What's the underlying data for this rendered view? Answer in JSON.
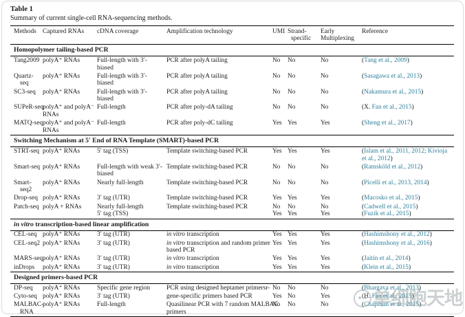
{
  "page": {
    "table_label": "Table 1",
    "caption": "Summary of current single-cell RNA-sequencing methods."
  },
  "colors": {
    "link": "#2a7f9c",
    "text": "#1c1c1c",
    "rule": "#000000",
    "frame": "#dadada",
    "background": "#ffffff"
  },
  "columns": [
    {
      "lines": [
        "Methods"
      ]
    },
    {
      "lines": [
        "Captured RNAs"
      ]
    },
    {
      "lines": [
        "cDNA coverage"
      ]
    },
    {
      "lines": [
        "Amplification technology"
      ]
    },
    {
      "lines": [
        "UMI"
      ]
    },
    {
      "lines": [
        "Strand-",
        "specific"
      ]
    },
    {
      "lines": [
        "Early",
        "Multiplexing"
      ]
    },
    {
      "lines": [
        "Reference"
      ]
    }
  ],
  "sections": [
    {
      "title": {
        "i": "",
        "t": "Homopolymer tailing-based PCR"
      },
      "rows": [
        {
          "method": [
            "Tang2009"
          ],
          "captured": [
            "polyA⁺ RNAs"
          ],
          "coverage": [
            "Full-length with 3′-",
            "biased"
          ],
          "amp": [
            {
              "i": "",
              "t": "PCR after polyA tailing"
            }
          ],
          "umi": [
            "No"
          ],
          "strand": [
            "No"
          ],
          "early": [
            "No"
          ],
          "refs": [
            [
              {
                "t": "("
              },
              {
                "t": "Tang et al., 2009",
                "l": true
              },
              {
                "t": ")"
              }
            ]
          ]
        },
        {
          "method": [
            "Quartz-",
            "seq"
          ],
          "captured": [
            "polyA⁺ RNAs"
          ],
          "coverage": [
            "Full-length with 3′-",
            "biased"
          ],
          "amp": [
            {
              "i": "",
              "t": "PCR after polyA tailing"
            }
          ],
          "umi": [
            "No"
          ],
          "strand": [
            "No"
          ],
          "early": [
            "No"
          ],
          "refs": [
            [
              {
                "t": "("
              },
              {
                "t": "Sasagawa et al., 2013",
                "l": true
              },
              {
                "t": ")"
              }
            ]
          ]
        },
        {
          "method": [
            "SC3-seq"
          ],
          "captured": [
            "polyA⁺ RNAs"
          ],
          "coverage": [
            "Full-length with 3′-",
            "biased"
          ],
          "amp": [
            {
              "i": "",
              "t": "PCR after polyA tailing"
            }
          ],
          "umi": [
            "No"
          ],
          "strand": [
            "No"
          ],
          "early": [
            "No"
          ],
          "refs": [
            [
              {
                "t": "("
              },
              {
                "t": "Nakamura et al., 2015",
                "l": true
              },
              {
                "t": ")"
              }
            ]
          ]
        },
        {
          "method": [
            "SUPeR-seq"
          ],
          "captured": [
            "polyA⁺ and polyA⁻",
            "RNAs"
          ],
          "coverage": [
            "Full-length"
          ],
          "amp": [
            {
              "i": "",
              "t": "PCR after poly-dA tailing"
            }
          ],
          "umi": [
            "No"
          ],
          "strand": [
            "No"
          ],
          "early": [
            "No"
          ],
          "refs": [
            [
              {
                "t": "(X. "
              },
              {
                "t": "Fan et al., 2015",
                "l": true
              },
              {
                "t": ")"
              }
            ]
          ]
        },
        {
          "method": [
            "MATQ-seq"
          ],
          "captured": [
            "polyA⁺ and polyA⁻",
            "RNAs"
          ],
          "coverage": [
            "Full-length"
          ],
          "amp": [
            {
              "i": "",
              "t": "PCR after poly-dC tailing"
            }
          ],
          "umi": [
            "Yes"
          ],
          "strand": [
            "Yes"
          ],
          "early": [
            "Yes"
          ],
          "refs": [
            [
              {
                "t": "("
              },
              {
                "t": "Sheng et al., 2017",
                "l": true
              },
              {
                "t": ")"
              }
            ]
          ]
        }
      ]
    },
    {
      "title": {
        "i": "",
        "t": "Switching Mechanism at 5′ End of RNA Template (SMART)-based PCR"
      },
      "rows": [
        {
          "method": [
            "STRT-seq"
          ],
          "captured": [
            "polyA⁺ RNAs"
          ],
          "coverage": [
            "5′ tag (TSS)"
          ],
          "amp": [
            {
              "i": "",
              "t": "Template switching-based PCR"
            }
          ],
          "umi": [
            "Yes"
          ],
          "strand": [
            "Yes"
          ],
          "early": [
            "Yes"
          ],
          "refs": [
            [
              {
                "t": "("
              },
              {
                "t": "Islam et al., 2011, 2012; Kivioja",
                "l": true
              }
            ],
            [
              {
                "t": "et al., 2012",
                "l": true
              },
              {
                "t": ")"
              }
            ]
          ]
        },
        {
          "method": [
            "Smart-seq"
          ],
          "captured": [
            "polyA⁺ RNAs"
          ],
          "coverage": [
            "Full-length with weak 3′-",
            "biased"
          ],
          "amp": [
            {
              "i": "",
              "t": "Template switching-based PCR"
            }
          ],
          "umi": [
            "No"
          ],
          "strand": [
            "No"
          ],
          "early": [
            "No"
          ],
          "refs": [
            [
              {
                "t": "("
              },
              {
                "t": "Ramsköld et al., 2012",
                "l": true
              },
              {
                "t": ")"
              }
            ]
          ]
        },
        {
          "method": [
            "Smart-",
            "seq2"
          ],
          "captured": [
            "polyA⁺ RNAs"
          ],
          "coverage": [
            "Nearly full-length"
          ],
          "amp": [
            {
              "i": "",
              "t": "Template switching-based PCR"
            }
          ],
          "umi": [
            "No"
          ],
          "strand": [
            "No"
          ],
          "early": [
            "No"
          ],
          "refs": [
            [
              {
                "t": "("
              },
              {
                "t": "Picelli et al., 2013, 2014",
                "l": true
              },
              {
                "t": ")"
              }
            ]
          ]
        },
        {
          "method": [
            "Drop-seq"
          ],
          "captured": [
            "polyA⁺ RNAs"
          ],
          "coverage": [
            "3′ tag (UTR)"
          ],
          "amp": [
            {
              "i": "",
              "t": "Template switching-based PCR"
            }
          ],
          "umi": [
            "Yes"
          ],
          "strand": [
            "Yes"
          ],
          "early": [
            "Yes"
          ],
          "refs": [
            [
              {
                "t": "("
              },
              {
                "t": "Macosko et al., 2015",
                "l": true
              },
              {
                "t": ")"
              }
            ]
          ]
        },
        {
          "method": [
            "Patch-seq"
          ],
          "captured": [
            "polyA + RNAs"
          ],
          "coverage": [
            "Nearly full-length",
            "5′ tag (TSS)"
          ],
          "amp": [
            {
              "i": "",
              "t": "Template switching-based PCR"
            }
          ],
          "umi": [
            "No",
            "Yes"
          ],
          "strand": [
            "No",
            "Yes"
          ],
          "early": [
            "No",
            "Yes"
          ],
          "refs": [
            [
              {
                "t": "("
              },
              {
                "t": "Cadwell et al., 2015",
                "l": true
              },
              {
                "t": ")"
              }
            ],
            [
              {
                "t": "("
              },
              {
                "t": "Fuzik et al., 2015",
                "l": true
              },
              {
                "t": ")"
              }
            ]
          ]
        }
      ]
    },
    {
      "title": {
        "i": "in vitro",
        "t": " transcription-based linear amplification"
      },
      "rows": [
        {
          "method": [
            "CEL-seq"
          ],
          "captured": [
            "polyA⁺ RNAs"
          ],
          "coverage": [
            "3′ tag (UTR)"
          ],
          "amp": [
            {
              "i": "in vitro",
              "t": " transcription"
            }
          ],
          "umi": [
            "Yes"
          ],
          "strand": [
            "Yes"
          ],
          "early": [
            "Yes"
          ],
          "refs": [
            [
              {
                "t": "("
              },
              {
                "t": "Hashimshony et al., 2012",
                "l": true
              },
              {
                "t": ")"
              }
            ]
          ]
        },
        {
          "method": [
            "CEL-seq2"
          ],
          "captured": [
            "polyA⁺ RNAs"
          ],
          "coverage": [
            "3′ tag (UTR)"
          ],
          "amp": [
            {
              "i": "in vitro",
              "t": " transcription and random primer"
            },
            {
              "i": "",
              "t": "based PCR"
            }
          ],
          "umi": [
            "Yes"
          ],
          "strand": [
            "Yes"
          ],
          "early": [
            "Yes"
          ],
          "refs": [
            [
              {
                "t": "("
              },
              {
                "t": "Hashimshony et al., 2016",
                "l": true
              },
              {
                "t": ")"
              }
            ]
          ]
        },
        {
          "method": [
            "MARS-seq"
          ],
          "captured": [
            "polyA⁺ RNAs"
          ],
          "coverage": [
            "3′ tag (UTR)"
          ],
          "amp": [
            {
              "i": "in vitro",
              "t": " transcription"
            }
          ],
          "umi": [
            "Yes"
          ],
          "strand": [
            "Yes"
          ],
          "early": [
            "Yes"
          ],
          "refs": [
            [
              {
                "t": "("
              },
              {
                "t": "Jaitin et al., 2014",
                "l": true
              },
              {
                "t": ")"
              }
            ]
          ]
        },
        {
          "method": [
            "inDrops"
          ],
          "captured": [
            "polyA⁺ RNAs"
          ],
          "coverage": [
            "3′ tag (UTR)"
          ],
          "amp": [
            {
              "i": "in vitro",
              "t": " transcription"
            }
          ],
          "umi": [
            "Yes"
          ],
          "strand": [
            "Yes"
          ],
          "early": [
            "Yes"
          ],
          "refs": [
            [
              {
                "t": "("
              },
              {
                "t": "Klein et al., 2015",
                "l": true
              },
              {
                "t": ")"
              }
            ]
          ]
        }
      ]
    },
    {
      "title": {
        "i": "",
        "t": "Designed primers-based PCR"
      },
      "rows": [
        {
          "method": [
            "DP-seq"
          ],
          "captured": [
            "polyA⁺ RNAs"
          ],
          "coverage": [
            "Specific gene region"
          ],
          "amp": [
            {
              "i": "",
              "t": "PCR using designed heptamer primersr-"
            }
          ],
          "umi": [
            "No"
          ],
          "strand": [
            "No"
          ],
          "early": [
            "No"
          ],
          "refs": [
            [
              {
                "t": "("
              },
              {
                "t": "Bhargava et al., 2013",
                "l": true
              },
              {
                "t": ")"
              }
            ]
          ]
        },
        {
          "method": [
            "Cyto-seq"
          ],
          "captured": [
            "polyA⁺ RNAs"
          ],
          "coverage": [
            "3′ tag (UTR)"
          ],
          "amp": [
            {
              "i": "",
              "t": "gene-specific primers based PCR"
            }
          ],
          "umi": [
            "Yes"
          ],
          "strand": [
            "No"
          ],
          "early": [
            "Yes"
          ],
          "refs": [
            [
              {
                "t": "(H. "
              },
              {
                "t": "Fan et al., 2015",
                "l": true
              },
              {
                "t": ")"
              }
            ]
          ]
        },
        {
          "method": [
            "MALBAC-",
            "RNA"
          ],
          "captured": [
            "polyA⁺ RNAs"
          ],
          "coverage": [
            "Full-length"
          ],
          "amp": [
            {
              "i": "",
              "t": "Quasilinear PCR with 7 random MALBAC"
            },
            {
              "i": "",
              "t": "primers"
            }
          ],
          "umi": [
            "No"
          ],
          "strand": [
            "No"
          ],
          "early": [
            "No"
          ],
          "refs": [
            [
              {
                "t": "("
              },
              {
                "t": "Chapman et al., 2015",
                "l": true
              },
              {
                "t": ")"
              }
            ]
          ]
        }
      ]
    }
  ],
  "watermark": {
    "text": "单细胞天地",
    "logo": "cell-mascot-logo"
  }
}
